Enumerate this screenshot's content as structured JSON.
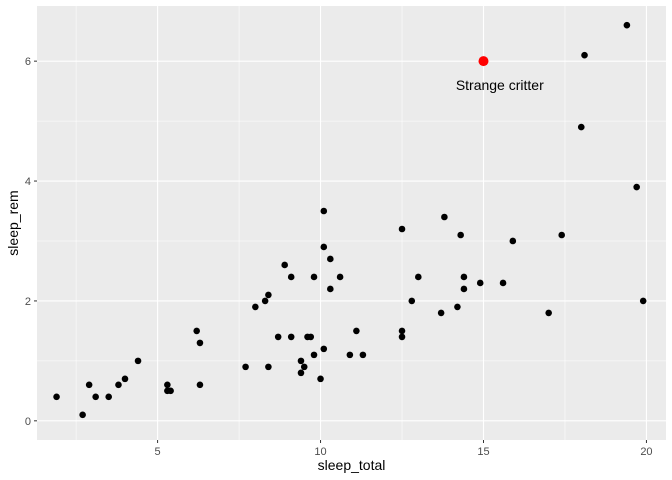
{
  "chart_data": {
    "type": "scatter",
    "xlabel": "sleep_total",
    "ylabel": "sleep_rem",
    "xlim": [
      1.3,
      20.6
    ],
    "ylim": [
      -0.32,
      6.92
    ],
    "x_ticks": [
      5,
      10,
      15,
      20
    ],
    "y_ticks": [
      0,
      2,
      4,
      6
    ],
    "grid": true,
    "colors": {
      "panel": "#EBEBEB",
      "grid": "#FFFFFF",
      "point": "#000000",
      "highlight": "#FF0000"
    },
    "points": [
      {
        "x": 1.9,
        "y": 0.4
      },
      {
        "x": 2.7,
        "y": 0.1
      },
      {
        "x": 2.9,
        "y": 0.6
      },
      {
        "x": 3.1,
        "y": 0.4
      },
      {
        "x": 3.5,
        "y": 0.4
      },
      {
        "x": 3.8,
        "y": 0.6
      },
      {
        "x": 4.0,
        "y": 0.7
      },
      {
        "x": 4.4,
        "y": 1.0
      },
      {
        "x": 5.3,
        "y": 0.6
      },
      {
        "x": 5.3,
        "y": 0.5
      },
      {
        "x": 5.4,
        "y": 0.5
      },
      {
        "x": 6.2,
        "y": 1.5
      },
      {
        "x": 6.3,
        "y": 1.3
      },
      {
        "x": 6.3,
        "y": 0.6
      },
      {
        "x": 7.7,
        "y": 0.9
      },
      {
        "x": 8.0,
        "y": 1.9
      },
      {
        "x": 8.3,
        "y": 2.0
      },
      {
        "x": 8.4,
        "y": 2.1
      },
      {
        "x": 8.4,
        "y": 0.9
      },
      {
        "x": 8.7,
        "y": 1.4
      },
      {
        "x": 8.9,
        "y": 2.6
      },
      {
        "x": 9.1,
        "y": 2.4
      },
      {
        "x": 9.1,
        "y": 1.4
      },
      {
        "x": 9.4,
        "y": 1.0
      },
      {
        "x": 9.4,
        "y": 0.8
      },
      {
        "x": 9.5,
        "y": 0.9
      },
      {
        "x": 9.6,
        "y": 1.4
      },
      {
        "x": 9.7,
        "y": 1.4
      },
      {
        "x": 9.8,
        "y": 2.4
      },
      {
        "x": 9.8,
        "y": 1.1
      },
      {
        "x": 10.0,
        "y": 0.7
      },
      {
        "x": 10.1,
        "y": 3.5
      },
      {
        "x": 10.1,
        "y": 2.9
      },
      {
        "x": 10.1,
        "y": 1.2
      },
      {
        "x": 10.3,
        "y": 2.7
      },
      {
        "x": 10.3,
        "y": 2.2
      },
      {
        "x": 10.6,
        "y": 2.4
      },
      {
        "x": 10.9,
        "y": 1.1
      },
      {
        "x": 11.1,
        "y": 1.5
      },
      {
        "x": 11.3,
        "y": 1.1
      },
      {
        "x": 12.5,
        "y": 3.2
      },
      {
        "x": 12.5,
        "y": 1.5
      },
      {
        "x": 12.5,
        "y": 1.4
      },
      {
        "x": 12.8,
        "y": 2.0
      },
      {
        "x": 13.0,
        "y": 2.4
      },
      {
        "x": 13.7,
        "y": 1.8
      },
      {
        "x": 13.8,
        "y": 3.4
      },
      {
        "x": 14.2,
        "y": 1.9
      },
      {
        "x": 14.3,
        "y": 3.1
      },
      {
        "x": 14.4,
        "y": 2.4
      },
      {
        "x": 14.4,
        "y": 2.2
      },
      {
        "x": 14.9,
        "y": 2.3
      },
      {
        "x": 15.6,
        "y": 2.3
      },
      {
        "x": 15.9,
        "y": 3.0
      },
      {
        "x": 17.0,
        "y": 1.8
      },
      {
        "x": 17.4,
        "y": 3.1
      },
      {
        "x": 18.0,
        "y": 4.9
      },
      {
        "x": 18.1,
        "y": 6.1
      },
      {
        "x": 19.4,
        "y": 6.6
      },
      {
        "x": 19.7,
        "y": 3.9
      },
      {
        "x": 19.9,
        "y": 2.0
      }
    ],
    "highlight": {
      "x": 15.0,
      "y": 6.0
    },
    "annotation": {
      "text": "Strange critter",
      "x": 15.5,
      "y": 5.6
    }
  }
}
